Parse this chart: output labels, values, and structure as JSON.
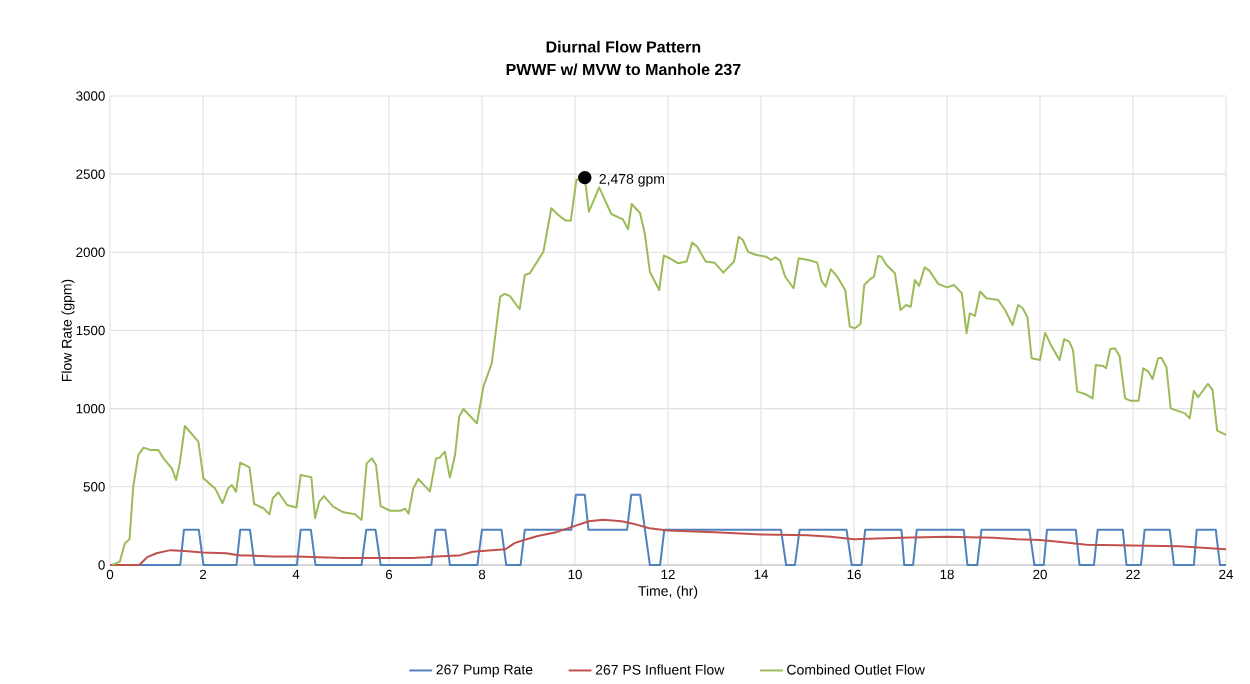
{
  "chart_data": {
    "type": "line",
    "title": "Diurnal Flow Pattern",
    "subtitle": "PWWF w/ MVW to Manhole 237",
    "xlabel": "Time, (hr)",
    "ylabel": "Flow Rate (gpm)",
    "xlim": [
      0,
      24
    ],
    "xticks": [
      0,
      2,
      4,
      6,
      8,
      10,
      12,
      14,
      16,
      18,
      20,
      22,
      24
    ],
    "ylim": [
      0,
      3000
    ],
    "yticks": [
      0,
      500,
      1000,
      1500,
      2000,
      2500,
      3000
    ],
    "grid": true,
    "legend": "bottom",
    "marker": "none",
    "line_style": "solid",
    "annotations": [
      {
        "text": "2,478 gpm",
        "x": 10.21,
        "y": 2478
      }
    ],
    "series": [
      {
        "name": "267 Pump Rate",
        "color": "#4f81bd",
        "x": [
          0,
          1.51,
          1.59,
          1.91,
          2.01,
          2.72,
          2.8,
          3.01,
          3.11,
          4.02,
          4.1,
          4.32,
          4.42,
          5.41,
          5.51,
          5.71,
          5.82,
          6.91,
          7.0,
          7.21,
          7.31,
          7.9,
          8.0,
          8.42,
          8.52,
          8.83,
          8.92,
          9.92,
          10.02,
          10.21,
          10.29,
          11.12,
          11.21,
          11.4,
          11.61,
          11.83,
          11.92,
          14.43,
          14.54,
          14.73,
          14.83,
          15.84,
          15.95,
          16.16,
          16.24,
          17.02,
          17.08,
          17.27,
          17.35,
          18.36,
          18.44,
          18.65,
          18.74,
          19.77,
          19.88,
          20.08,
          20.15,
          20.77,
          20.85,
          21.16,
          21.24,
          21.78,
          21.86,
          22.17,
          22.25,
          22.79,
          22.88,
          23.31,
          23.37,
          23.78,
          23.87,
          24
        ],
        "values": [
          0,
          0,
          225,
          225,
          0,
          0,
          225,
          225,
          0,
          0,
          225,
          225,
          0,
          0,
          225,
          225,
          0,
          0,
          225,
          225,
          0,
          0,
          225,
          225,
          0,
          0,
          225,
          225,
          450,
          450,
          225,
          225,
          450,
          450,
          0,
          0,
          225,
          225,
          0,
          0,
          225,
          225,
          0,
          0,
          225,
          225,
          0,
          0,
          225,
          225,
          0,
          0,
          225,
          225,
          0,
          0,
          225,
          225,
          0,
          0,
          225,
          225,
          0,
          0,
          225,
          225,
          0,
          0,
          225,
          225,
          0,
          0
        ]
      },
      {
        "name": "267 PS Influent Flow",
        "color": "#c0504d",
        "x": [
          0,
          0.63,
          0.8,
          1.0,
          1.3,
          1.6,
          2.0,
          2.5,
          2.8,
          3.0,
          3.5,
          4.0,
          4.5,
          5.0,
          5.5,
          6.0,
          6.5,
          6.8,
          7.0,
          7.5,
          7.8,
          8.0,
          8.5,
          8.7,
          8.9,
          9.2,
          9.6,
          10.0,
          10.3,
          10.6,
          11.0,
          11.3,
          11.6,
          12.0,
          13.0,
          14.0,
          15.0,
          15.5,
          16.0,
          17.0,
          18.0,
          19.0,
          19.5,
          20.0,
          20.5,
          21.0,
          22.0,
          23.0,
          23.5,
          24.0
        ],
        "values": [
          0,
          0,
          50,
          75,
          95,
          90,
          80,
          75,
          60,
          60,
          55,
          55,
          50,
          45,
          45,
          45,
          45,
          50,
          55,
          60,
          85,
          90,
          100,
          140,
          160,
          185,
          210,
          250,
          280,
          290,
          280,
          260,
          235,
          220,
          210,
          195,
          190,
          180,
          165,
          175,
          180,
          175,
          165,
          160,
          145,
          130,
          125,
          120,
          110,
          100
        ]
      },
      {
        "name": "Combined Outlet Flow",
        "color": "#9bbb59",
        "x": [
          0.05,
          0.21,
          0.32,
          0.42,
          0.5,
          0.61,
          0.72,
          0.86,
          1.04,
          1.15,
          1.33,
          1.42,
          1.5,
          1.61,
          1.9,
          2.01,
          2.26,
          2.42,
          2.54,
          2.62,
          2.71,
          2.8,
          3.0,
          3.1,
          3.3,
          3.43,
          3.5,
          3.62,
          3.81,
          4.01,
          4.1,
          4.33,
          4.41,
          4.5,
          4.6,
          4.8,
          5.02,
          5.27,
          5.41,
          5.52,
          5.63,
          5.72,
          5.82,
          6.02,
          6.24,
          6.35,
          6.42,
          6.52,
          6.63,
          6.88,
          7.01,
          7.09,
          7.2,
          7.31,
          7.42,
          7.51,
          7.6,
          7.89,
          8.03,
          8.21,
          8.39,
          8.49,
          8.6,
          8.81,
          8.92,
          9.03,
          9.32,
          9.49,
          9.64,
          9.8,
          9.91,
          10.03,
          10.21,
          10.3,
          10.52,
          10.78,
          11.03,
          11.14,
          11.22,
          11.4,
          11.5,
          11.61,
          11.81,
          11.91,
          12.04,
          12.22,
          12.4,
          12.52,
          12.63,
          12.81,
          13.0,
          13.19,
          13.42,
          13.52,
          13.61,
          13.72,
          13.9,
          14.11,
          14.22,
          14.31,
          14.41,
          14.52,
          14.7,
          14.81,
          15.02,
          15.21,
          15.3,
          15.39,
          15.5,
          15.64,
          15.81,
          15.91,
          16.02,
          16.14,
          16.22,
          16.34,
          16.43,
          16.52,
          16.59,
          16.7,
          16.88,
          17.0,
          17.12,
          17.22,
          17.31,
          17.4,
          17.52,
          17.62,
          17.81,
          18.0,
          18.15,
          18.32,
          18.42,
          18.49,
          18.6,
          18.71,
          18.85,
          19.1,
          19.25,
          19.41,
          19.53,
          19.63,
          19.73,
          19.82,
          20.0,
          20.11,
          20.25,
          20.42,
          20.52,
          20.63,
          20.71,
          20.8,
          20.97,
          21.13,
          21.2,
          21.36,
          21.42,
          21.51,
          21.61,
          21.71,
          21.83,
          21.94,
          22.12,
          22.22,
          22.33,
          22.42,
          22.54,
          22.61,
          22.72,
          22.81,
          23.01,
          23.12,
          23.22,
          23.31,
          23.4,
          23.61,
          23.71,
          23.81,
          24.0
        ],
        "values": [
          0,
          21,
          139,
          164,
          501,
          704,
          751,
          736,
          736,
          682,
          618,
          544,
          650,
          889,
          789,
          554,
          490,
          395,
          490,
          512,
          469,
          655,
          625,
          390,
          363,
          324,
          427,
          465,
          384,
          367,
          576,
          561,
          299,
          405,
          441,
          373,
          337,
          324,
          288,
          650,
          682,
          640,
          377,
          347,
          347,
          360,
          328,
          488,
          550,
          471,
          680,
          687,
          725,
          559,
          704,
          949,
          998,
          906,
          1141,
          1290,
          1716,
          1734,
          1720,
          1636,
          1855,
          1866,
          2004,
          2282,
          2239,
          2203,
          2203,
          2463,
          2478,
          2260,
          2416,
          2245,
          2211,
          2148,
          2309,
          2250,
          2122,
          1876,
          1759,
          1979,
          1962,
          1930,
          1941,
          2062,
          2036,
          1941,
          1934,
          1870,
          1941,
          2100,
          2079,
          2004,
          1983,
          1972,
          1951,
          1968,
          1947,
          1844,
          1770,
          1962,
          1951,
          1934,
          1819,
          1780,
          1892,
          1844,
          1759,
          1525,
          1514,
          1542,
          1791,
          1827,
          1844,
          1977,
          1972,
          1919,
          1866,
          1631,
          1663,
          1652,
          1823,
          1785,
          1904,
          1883,
          1798,
          1776,
          1791,
          1738,
          1482,
          1610,
          1593,
          1749,
          1706,
          1695,
          1631,
          1535,
          1663,
          1642,
          1584,
          1322,
          1311,
          1486,
          1397,
          1311,
          1444,
          1429,
          1375,
          1109,
          1094,
          1066,
          1279,
          1273,
          1258,
          1380,
          1386,
          1337,
          1066,
          1051,
          1051,
          1258,
          1237,
          1190,
          1322,
          1326,
          1265,
          1002,
          981,
          970,
          938,
          1115,
          1073,
          1158,
          1120,
          859,
          832
        ]
      }
    ]
  }
}
